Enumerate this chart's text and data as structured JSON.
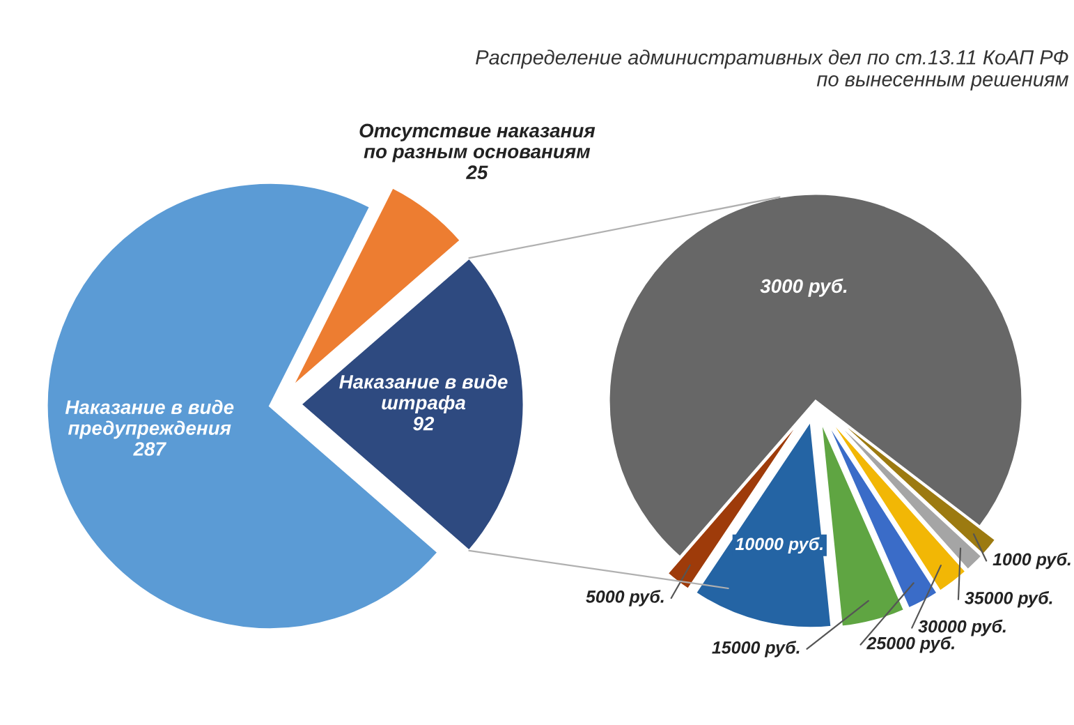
{
  "chart_data": [
    {
      "type": "pie",
      "categories": [
        "Наказание в виде\nпредупреждения",
        "Отсутствие наказания\nпо разным основаниям",
        "Наказание в виде\nштрафа"
      ],
      "values": [
        287,
        25,
        92
      ],
      "colors": [
        "#5b9bd5",
        "#ed7d31",
        "#2e4a80"
      ],
      "data_labels": true
    },
    {
      "type": "pie",
      "title": "Распределение административных дел по ст.13.11 КоАП РФ\nпо вынесенным решениям",
      "categories": [
        "3000 руб.",
        "1000 руб.",
        "35000 руб.",
        "30000 руб.",
        "25000 руб.",
        "15000 руб.",
        "10000 руб.",
        "5000 руб."
      ],
      "values": [
        74,
        1.5,
        1.5,
        2.5,
        2.5,
        5,
        11,
        2
      ],
      "colors": [
        "#676767",
        "#9c7a10",
        "#a5a5a5",
        "#f2b705",
        "#3a6cc8",
        "#5fa542",
        "#2464a4",
        "#9e3b0a"
      ]
    }
  ]
}
